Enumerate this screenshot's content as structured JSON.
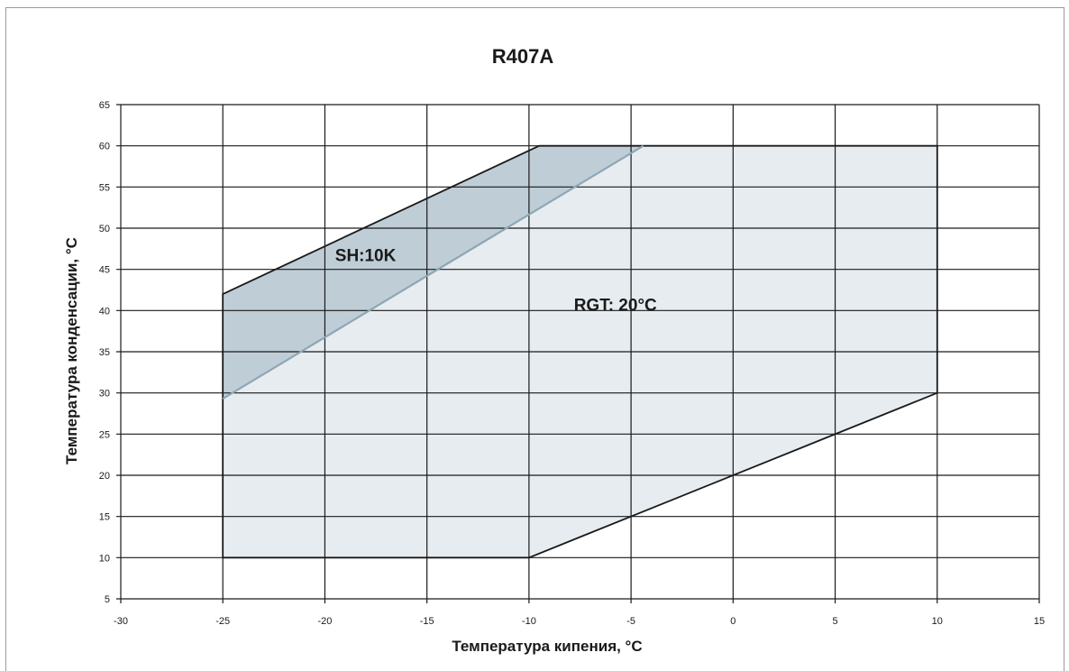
{
  "chart_data": {
    "type": "area",
    "title": "R407A",
    "xlabel": "Температура кипения, °C",
    "ylabel": "Температура конденсации, °C",
    "xlim": [
      -30,
      15
    ],
    "ylim": [
      5,
      65
    ],
    "x_ticks": [
      -30,
      -25,
      -20,
      -15,
      -10,
      -5,
      0,
      5,
      10,
      15
    ],
    "y_ticks": [
      5,
      10,
      15,
      20,
      25,
      30,
      35,
      40,
      45,
      50,
      55,
      60,
      65
    ],
    "grid": true,
    "colors": {
      "light_region": "#e6ecf0",
      "dark_region": "#bfcdd6",
      "boundary": "#1a1a1a",
      "inner_line": "#8fa6b4",
      "grid": "#1a1a1a"
    },
    "regions": [
      {
        "label": "RGT: 20°C",
        "points": [
          [
            -25,
            10
          ],
          [
            -10,
            10
          ],
          [
            10,
            30
          ],
          [
            10,
            60
          ],
          [
            -9.5,
            60
          ],
          [
            -25,
            42
          ]
        ]
      },
      {
        "label": "SH:10K",
        "points": [
          [
            -25,
            42
          ],
          [
            -9.5,
            60
          ],
          [
            -4.4,
            60
          ],
          [
            -25,
            29.3
          ]
        ]
      }
    ],
    "annotations": [
      {
        "text": "SH:10K",
        "x": -19.5,
        "y": 46
      },
      {
        "text": "RGT: 20°C",
        "x": -7.8,
        "y": 40
      }
    ]
  }
}
